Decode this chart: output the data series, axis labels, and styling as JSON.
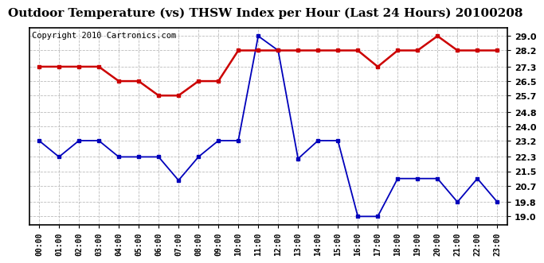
{
  "title": "Outdoor Temperature (vs) THSW Index per Hour (Last 24 Hours) 20100208",
  "copyright": "Copyright 2010 Cartronics.com",
  "hours": [
    "00:00",
    "01:00",
    "02:00",
    "03:00",
    "04:00",
    "05:00",
    "06:00",
    "07:00",
    "08:00",
    "09:00",
    "10:00",
    "11:00",
    "12:00",
    "13:00",
    "14:00",
    "15:00",
    "16:00",
    "17:00",
    "18:00",
    "19:00",
    "20:00",
    "21:00",
    "22:00",
    "23:00"
  ],
  "blue_data": [
    23.2,
    22.3,
    23.2,
    23.2,
    22.3,
    22.3,
    22.3,
    21.0,
    22.3,
    23.2,
    23.2,
    29.0,
    28.2,
    22.2,
    23.2,
    23.2,
    19.0,
    19.0,
    21.1,
    21.1,
    21.1,
    19.8,
    21.1,
    19.8
  ],
  "red_data": [
    27.3,
    27.3,
    27.3,
    27.3,
    26.5,
    26.5,
    25.7,
    25.7,
    26.5,
    26.5,
    28.2,
    28.2,
    28.2,
    28.2,
    28.2,
    28.2,
    28.2,
    27.3,
    28.2,
    28.2,
    29.0,
    28.2,
    28.2,
    28.2
  ],
  "yticks": [
    19.0,
    19.8,
    20.7,
    21.5,
    22.3,
    23.2,
    24.0,
    24.8,
    25.7,
    26.5,
    27.3,
    28.2,
    29.0
  ],
  "ymin": 18.55,
  "ymax": 29.45,
  "blue_color": "#0000bb",
  "red_color": "#cc0000",
  "grid_color": "#bbbbbb",
  "background_color": "#ffffff",
  "title_fontsize": 11,
  "copyright_fontsize": 7.5
}
